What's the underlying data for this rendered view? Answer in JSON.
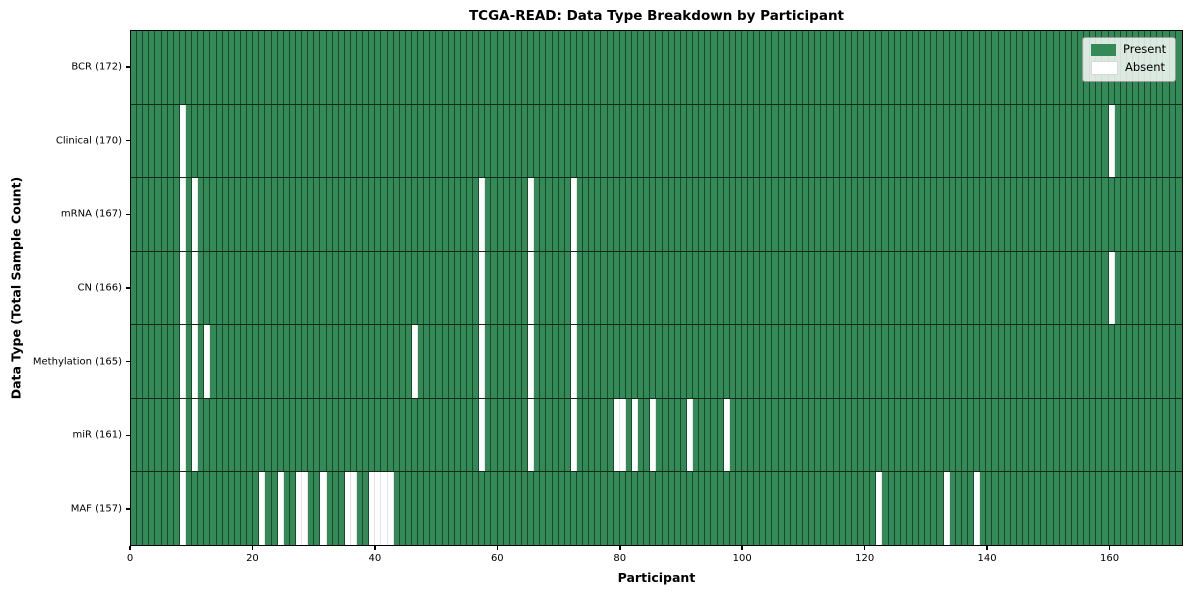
{
  "chart_data": {
    "type": "heatmap",
    "title": "TCGA-READ: Data Type Breakdown by Participant",
    "xlabel": "Participant",
    "ylabel": "Data Type (Total Sample Count)",
    "n_participants": 172,
    "xlim": [
      0,
      172
    ],
    "x_ticks": [
      0,
      20,
      40,
      60,
      80,
      100,
      120,
      140,
      160
    ],
    "grid": true,
    "legend_position": "upper right",
    "legend": [
      {
        "label": "Present",
        "color": "#348a57"
      },
      {
        "label": "Absent",
        "color": "#ffffff"
      }
    ],
    "colors": {
      "present": "#348a57",
      "absent": "#ffffff",
      "grid_line": "rgba(0,0,0,0.48)"
    },
    "rows": [
      {
        "name": "BCR",
        "total": 172,
        "label": "BCR (172)",
        "absent": []
      },
      {
        "name": "Clinical",
        "total": 170,
        "label": "Clinical (170)",
        "absent": [
          8,
          160
        ]
      },
      {
        "name": "mRNA",
        "total": 167,
        "label": "mRNA (167)",
        "absent": [
          8,
          10,
          57,
          65,
          72
        ]
      },
      {
        "name": "CN",
        "total": 166,
        "label": "CN (166)",
        "absent": [
          8,
          10,
          57,
          65,
          72,
          160
        ]
      },
      {
        "name": "Methylation",
        "total": 165,
        "label": "Methylation (165)",
        "absent": [
          8,
          10,
          12,
          46,
          57,
          65,
          72
        ]
      },
      {
        "name": "miR",
        "total": 161,
        "label": "miR (161)",
        "absent": [
          8,
          10,
          57,
          65,
          72,
          79,
          80,
          82,
          85,
          91,
          97
        ]
      },
      {
        "name": "MAF",
        "total": 157,
        "label": "MAF (157)",
        "absent": [
          8,
          21,
          24,
          27,
          28,
          31,
          35,
          36,
          39,
          40,
          41,
          42,
          122,
          133,
          138
        ]
      }
    ]
  }
}
